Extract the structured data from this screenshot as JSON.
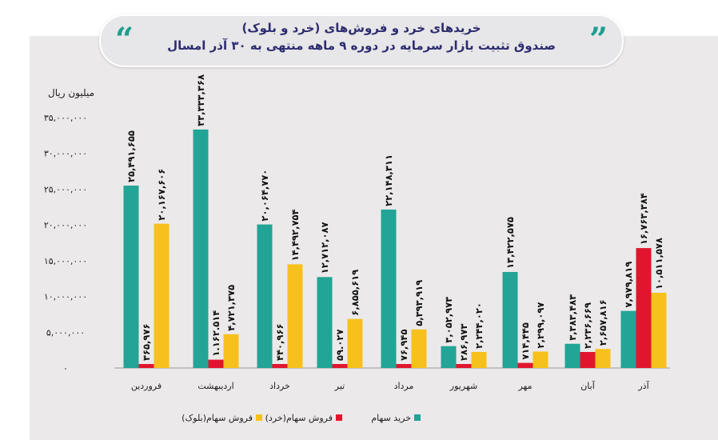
{
  "title": {
    "line1": "خریدهای خرد و فروش‌های (خرد و بلوک)",
    "line2": "صندوق تثبیت بازار سرمایه در دوره ۹ ماهه منتهی به ۳۰ آذر امسال",
    "quote_left": "“",
    "quote_right": "”"
  },
  "chart_data": {
    "type": "bar",
    "title": "خریدهای خرد و فروش‌های (خرد و بلوک) صندوق تثبیت بازار سرمایه در دوره ۹ ماهه منتهی به ۳۰ آذر امسال",
    "ylabel": "میلیون ریال",
    "xlabel": "",
    "ylim": [
      0,
      35000000
    ],
    "yticks": [
      0,
      5000000,
      10000000,
      15000000,
      20000000,
      25000000,
      30000000,
      35000000
    ],
    "ytick_labels": [
      "۰",
      "۵,۰۰۰,۰۰۰",
      "۱۰,۰۰۰,۰۰۰",
      "۱۵,۰۰۰,۰۰۰",
      "۲۰,۰۰۰,۰۰۰",
      "۲۵,۰۰۰,۰۰۰",
      "۳۰,۰۰۰,۰۰۰",
      "۳۵,۰۰۰,۰۰۰"
    ],
    "grid": false,
    "legend_position": "bottom",
    "categories": [
      "فروردین",
      "اردیبهشت",
      "خرداد",
      "تیر",
      "مرداد",
      "شهریور",
      "مهر",
      "آبان",
      "آذر"
    ],
    "series": [
      {
        "name": "خرید سهام",
        "color": "#22a496",
        "values": [
          25491655,
          33333368,
          20064770,
          12712087,
          22148311,
          3052973,
          13422575,
          3383483,
          7979819
        ],
        "labels": [
          "۲۵,۴۹۱,۶۵۵",
          "۳۳,۳۳۳,۳۶۸",
          "۲۰,۰۶۴,۷۷۰",
          "۱۲,۷۱۲,۰۸۷",
          "۲۲,۱۴۸,۳۱۱",
          "۳,۰۵۲,۹۷۳",
          "۱۳,۴۲۲,۵۷۵",
          "۳,۳۸۳,۴۸۳",
          "۷,۹۷۹,۸۱۹"
        ]
      },
      {
        "name": "فروش سهام(خرد)",
        "color": "#e1162e",
        "values": [
          365976,
          1162514,
          440966,
          59027,
          76945,
          286973,
          714445,
          2236669,
          16763384
        ],
        "labels": [
          "۳۶۵,۹۷۶",
          "۱.۱۶۲.۵۱۴",
          "۴۴۰,۹۶۶",
          "۵۹.۰۲۷",
          "۷۶,۹۴۵",
          "۲۸۶,۹۷۳",
          "۷۱۴,۴۴۵",
          "۲,۲۳۶,۶۶۹",
          "۱۶,۷۶۳,۳۸۴"
        ]
      },
      {
        "name": "فروش سهام(بلوک)",
        "color": "#f6c11c",
        "values": [
          20167606,
          4721375,
          14492754,
          6855619,
          5393919,
          2244020,
          2299097,
          2657816,
          10511578
        ],
        "labels": [
          "۲۰,۱۶۷,۶۰۶",
          "۴,۷۲۱,۳۷۵",
          "۱۴,۴۹۲,۷۵۴",
          "۶,۸۵۵,۶۱۹",
          "۵,۳۹۳,۹۱۹",
          "۲,۲۴۴,۰۲۰",
          "۲,۲۹۹,۰۹۷",
          "۲,۶۵۷,۸۱۶",
          "۱۰,۵۱۱,۵۷۸"
        ]
      }
    ]
  }
}
